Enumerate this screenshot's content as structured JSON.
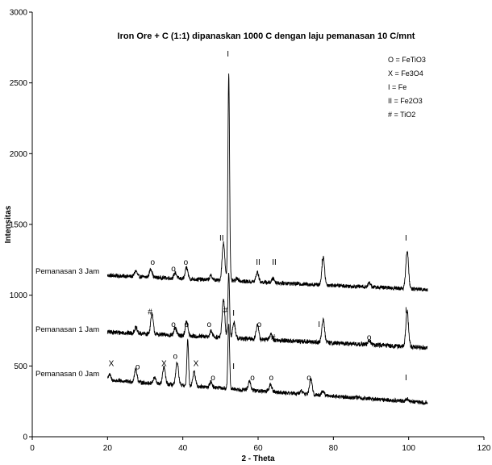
{
  "chart_data": {
    "type": "line",
    "title": "Iron Ore + C (1:1) dipanaskan 1000 C dengan laju pemanasan 10 C/mnt",
    "xlabel": "2 - Theta",
    "ylabel": "Intensitas",
    "xlim": [
      0,
      120
    ],
    "ylim": [
      0,
      3000
    ],
    "xticks": [
      "0",
      "20",
      "40",
      "60",
      "80",
      "100",
      "120"
    ],
    "yticks": [
      "0",
      "500",
      "1000",
      "1500",
      "2000",
      "2500",
      "3000"
    ],
    "x_range": [
      20,
      105
    ],
    "legend": [
      "O = FeTiO3",
      "X = Fe3O4",
      "I  = Fe",
      "II = Fe2O3",
      "# = TiO2"
    ],
    "legend_position": "top-right",
    "series": [
      {
        "name": "Pemanasan 3 Jam",
        "baseline": [
          [
            20,
            1140
          ],
          [
            105,
            1040
          ]
        ],
        "noise": 14,
        "peaks": [
          [
            27.5,
            40
          ],
          [
            31.5,
            60
          ],
          [
            38,
            40
          ],
          [
            41,
            80
          ],
          [
            47.5,
            30
          ],
          [
            50.8,
            270
          ],
          [
            52.2,
            1460
          ],
          [
            54.5,
            20
          ],
          [
            59.8,
            70
          ],
          [
            64,
            30
          ],
          [
            77.3,
            200
          ],
          [
            89.6,
            30
          ],
          [
            99.6,
            270
          ]
        ]
      },
      {
        "name": "Pemanasan 1 Jam",
        "baseline": [
          [
            20,
            740
          ],
          [
            105,
            630
          ]
        ],
        "noise": 16,
        "peaks": [
          [
            27.5,
            40
          ],
          [
            31.8,
            140
          ],
          [
            38,
            50
          ],
          [
            41,
            100
          ],
          [
            47.5,
            40
          ],
          [
            50.8,
            270
          ],
          [
            52.2,
            460
          ],
          [
            53.6,
            110
          ],
          [
            59.8,
            100
          ],
          [
            63.4,
            40
          ],
          [
            77.3,
            170
          ],
          [
            89.6,
            30
          ],
          [
            99.6,
            250
          ]
        ]
      },
      {
        "name": "Pemanasan 0 Jam",
        "baseline": [
          [
            20,
            400
          ],
          [
            105,
            240
          ]
        ],
        "noise": 14,
        "peaks": [
          [
            20.5,
            40
          ],
          [
            27.5,
            90
          ],
          [
            32.5,
            40
          ],
          [
            35,
            120
          ],
          [
            38.5,
            160
          ],
          [
            41.3,
            330
          ],
          [
            43,
            100
          ],
          [
            47.5,
            40
          ],
          [
            52.2,
            460
          ],
          [
            57.7,
            60
          ],
          [
            63.3,
            50
          ],
          [
            71.5,
            20
          ],
          [
            74,
            110
          ],
          [
            77.2,
            30
          ],
          [
            99.6,
            20
          ]
        ]
      }
    ],
    "annotations": [
      {
        "text": "I",
        "x": 52,
        "y": 2685
      },
      {
        "text": "II",
        "x": 50.3,
        "y": 1385
      },
      {
        "text": "o",
        "x": 32,
        "y": 1215
      },
      {
        "text": "o",
        "x": 37.5,
        "y": 1170
      },
      {
        "text": "o",
        "x": 40.8,
        "y": 1215
      },
      {
        "text": "II",
        "x": 60,
        "y": 1215
      },
      {
        "text": "II",
        "x": 64.3,
        "y": 1215
      },
      {
        "text": "I",
        "x": 77,
        "y": 1215
      },
      {
        "text": "I",
        "x": 99.3,
        "y": 1385
      },
      {
        "text": "#",
        "x": 31.3,
        "y": 865
      },
      {
        "text": "o",
        "x": 37.5,
        "y": 775
      },
      {
        "text": "o",
        "x": 41,
        "y": 775
      },
      {
        "text": "o",
        "x": 47,
        "y": 775
      },
      {
        "text": "#",
        "x": 51.3,
        "y": 875
      },
      {
        "text": "I",
        "x": 53.5,
        "y": 855
      },
      {
        "text": "o",
        "x": 60.3,
        "y": 775
      },
      {
        "text": "#",
        "x": 64,
        "y": 685
      },
      {
        "text": "I",
        "x": 76.2,
        "y": 775
      },
      {
        "text": "o",
        "x": 89.5,
        "y": 685
      },
      {
        "text": "I",
        "x": 99.3,
        "y": 875
      },
      {
        "text": "X",
        "x": 21,
        "y": 500
      },
      {
        "text": "o",
        "x": 28,
        "y": 475
      },
      {
        "text": "X",
        "x": 35,
        "y": 500
      },
      {
        "text": "o",
        "x": 38,
        "y": 550
      },
      {
        "text": "X",
        "x": 43.5,
        "y": 500
      },
      {
        "text": "o",
        "x": 48,
        "y": 400
      },
      {
        "text": "I",
        "x": 53.5,
        "y": 480
      },
      {
        "text": "o",
        "x": 58.5,
        "y": 400
      },
      {
        "text": "o",
        "x": 63.5,
        "y": 400
      },
      {
        "text": "o",
        "x": 73.5,
        "y": 400
      },
      {
        "text": "I",
        "x": 99.3,
        "y": 400
      }
    ],
    "grid": false
  },
  "colors": {
    "line": "#000000",
    "axis": "#000000",
    "background": "#ffffff"
  }
}
